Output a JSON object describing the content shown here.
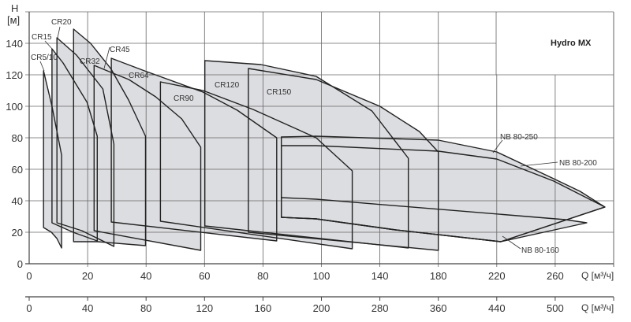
{
  "chart_data": {
    "type": "area",
    "title": "Hydro MX",
    "ylabel": "H",
    "yunit": "[м]",
    "xlabel": "Q [м³/ч]",
    "xlabel2": "Q [м³/ч]",
    "ylim": [
      0,
      160
    ],
    "yticks": [
      "0",
      "20",
      "40",
      "60",
      "80",
      "100",
      "120",
      "140"
    ],
    "xticks": [
      "0",
      "20",
      "40",
      "60",
      "80",
      "100",
      "140",
      "180",
      "220",
      "260"
    ],
    "xticks_secondary": [
      "0",
      "40",
      "80",
      "120",
      "160",
      "200",
      "280",
      "360",
      "440",
      "500"
    ],
    "grid": true,
    "fill_color": "#dcdde0",
    "line_color": "#222222",
    "grid_color": "#666666",
    "series": [
      {
        "name": "CR5/10",
        "top": [
          [
            4.9,
            122.5
          ],
          [
            7.8,
            100
          ],
          [
            11.1,
            69
          ]
        ],
        "bottom": [
          [
            4.9,
            23
          ],
          [
            7.6,
            20
          ],
          [
            9.5,
            16
          ],
          [
            11.1,
            10
          ]
        ]
      },
      {
        "name": "CR15",
        "top": [
          [
            7.8,
            136.5
          ],
          [
            11.6,
            127.5
          ],
          [
            19.8,
            102.5
          ],
          [
            23.3,
            81
          ]
        ],
        "bottom": [
          [
            7.8,
            26
          ],
          [
            15,
            20
          ],
          [
            23.3,
            14.5
          ]
        ]
      },
      {
        "name": "CR20",
        "top": [
          [
            9.5,
            143.5
          ],
          [
            16.2,
            132.5
          ],
          [
            25.2,
            111
          ],
          [
            29,
            76
          ]
        ],
        "bottom": [
          [
            9.5,
            26
          ],
          [
            18,
            21
          ],
          [
            29,
            11
          ]
        ]
      },
      {
        "name": "CR32",
        "top": [
          [
            15.2,
            149
          ],
          [
            21,
            140
          ],
          [
            27.9,
            124
          ],
          [
            34,
            104
          ],
          [
            39.8,
            81
          ]
        ],
        "bottom": [
          [
            15.2,
            14
          ],
          [
            23.3,
            14
          ],
          [
            39.8,
            11.5
          ]
        ]
      },
      {
        "name": "CR45",
        "top": [
          [
            22.2,
            126
          ],
          [
            28.7,
            121
          ],
          [
            34.1,
            117
          ],
          [
            43.3,
            106
          ],
          [
            52.2,
            92
          ],
          [
            58.7,
            74
          ]
        ],
        "bottom": [
          [
            22.2,
            21
          ],
          [
            58.7,
            8.5
          ]
        ]
      },
      {
        "name": "CR64",
        "top": [
          [
            28.1,
            130.5
          ],
          [
            39.5,
            122.5
          ],
          [
            59.5,
            109
          ],
          [
            71.2,
            97.5
          ],
          [
            84.7,
            80
          ]
        ],
        "bottom": [
          [
            28.1,
            26.5
          ],
          [
            84.7,
            14.5
          ]
        ]
      },
      {
        "name": "CR90",
        "top": [
          [
            44.9,
            115.5
          ],
          [
            59.5,
            110
          ],
          [
            76.6,
            98
          ],
          [
            98.2,
            80
          ],
          [
            121.1,
            59
          ]
        ],
        "bottom": [
          [
            44.9,
            27
          ],
          [
            121.1,
            9.5
          ]
        ]
      },
      {
        "name": "CR120",
        "top": [
          [
            60.1,
            129
          ],
          [
            79.3,
            126.5
          ],
          [
            98.2,
            119
          ],
          [
            134.6,
            97
          ],
          [
            159.5,
            67
          ]
        ],
        "bottom": [
          [
            60.1,
            24
          ],
          [
            159.5,
            10
          ]
        ]
      },
      {
        "name": "CR150",
        "top": [
          [
            75,
            124
          ],
          [
            98.2,
            117
          ],
          [
            140,
            100
          ],
          [
            167,
            84
          ],
          [
            180,
            71
          ]
        ],
        "bottom": [
          [
            75,
            20
          ],
          [
            180,
            8.5
          ]
        ]
      },
      {
        "name": "NB 80-250",
        "top": [
          [
            86.3,
            80.5
          ],
          [
            98.2,
            81
          ],
          [
            180,
            78.5
          ],
          [
            220,
            71
          ],
          [
            259,
            54
          ],
          [
            277,
            46
          ],
          [
            294,
            36
          ]
        ],
        "bottom": [
          [
            86.3,
            29.5
          ],
          [
            98.2,
            28.5
          ],
          [
            150.8,
            21.5
          ],
          [
            222.7,
            14
          ]
        ]
      },
      {
        "name": "NB 80-200",
        "top": [
          [
            86.3,
            75
          ],
          [
            98.2,
            75
          ],
          [
            180,
            71.5
          ],
          [
            220,
            66.5
          ],
          [
            259,
            52.5
          ],
          [
            294,
            36
          ]
        ],
        "bottom": [
          [
            86.3,
            29.5
          ],
          [
            98.2,
            28.5
          ],
          [
            150.8,
            21.5
          ],
          [
            222.7,
            14
          ]
        ]
      },
      {
        "name": "NB 80-160",
        "top": [
          [
            86.3,
            42
          ],
          [
            98.2,
            41
          ],
          [
            267,
            28
          ],
          [
            281.6,
            26
          ]
        ],
        "bottom": [
          [
            86.3,
            29.5
          ],
          [
            98.2,
            28.5
          ],
          [
            150.8,
            21.5
          ],
          [
            222.7,
            14
          ]
        ]
      }
    ]
  }
}
